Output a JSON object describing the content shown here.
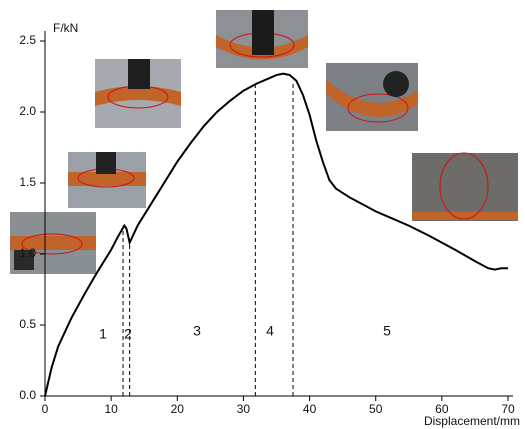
{
  "chart_data": {
    "type": "line",
    "x_label": "Displacement/mm",
    "y_label": "F/kN",
    "x": [
      0,
      1,
      2,
      4,
      6,
      8,
      10,
      11,
      12,
      12.3,
      12.8,
      14,
      16,
      18,
      20,
      22,
      24,
      26,
      28,
      30,
      32,
      34,
      35,
      36,
      37,
      38,
      39,
      40,
      41,
      42,
      43,
      44,
      46,
      48,
      50,
      52,
      55,
      58,
      60,
      62,
      65,
      67,
      68,
      69,
      70
    ],
    "series": [
      {
        "name": "F",
        "color": "#000000",
        "values": [
          0,
          0.2,
          0.35,
          0.55,
          0.72,
          0.88,
          1.03,
          1.12,
          1.2,
          1.18,
          1.08,
          1.2,
          1.35,
          1.5,
          1.65,
          1.78,
          1.9,
          2.0,
          2.08,
          2.15,
          2.2,
          2.24,
          2.26,
          2.27,
          2.26,
          2.22,
          2.12,
          1.98,
          1.8,
          1.65,
          1.52,
          1.46,
          1.4,
          1.35,
          1.3,
          1.26,
          1.2,
          1.13,
          1.08,
          1.03,
          0.95,
          0.9,
          0.89,
          0.9,
          0.9
        ]
      }
    ],
    "xlim": [
      0,
      70
    ],
    "xticks": [
      0,
      10,
      20,
      30,
      40,
      50,
      60,
      70
    ],
    "ylim": [
      0,
      2.5
    ],
    "yticks": [
      {
        "value": 0,
        "label": "0.0"
      },
      0.5,
      {
        "value": 1,
        "label": "1.0"
      },
      1.5,
      {
        "value": 2,
        "label": "2.0"
      },
      2.5
    ],
    "dividers": [
      11.8,
      12.8,
      31.8,
      37.5
    ],
    "region_labels": [
      "1",
      "2",
      "3",
      "4",
      "5"
    ]
  }
}
